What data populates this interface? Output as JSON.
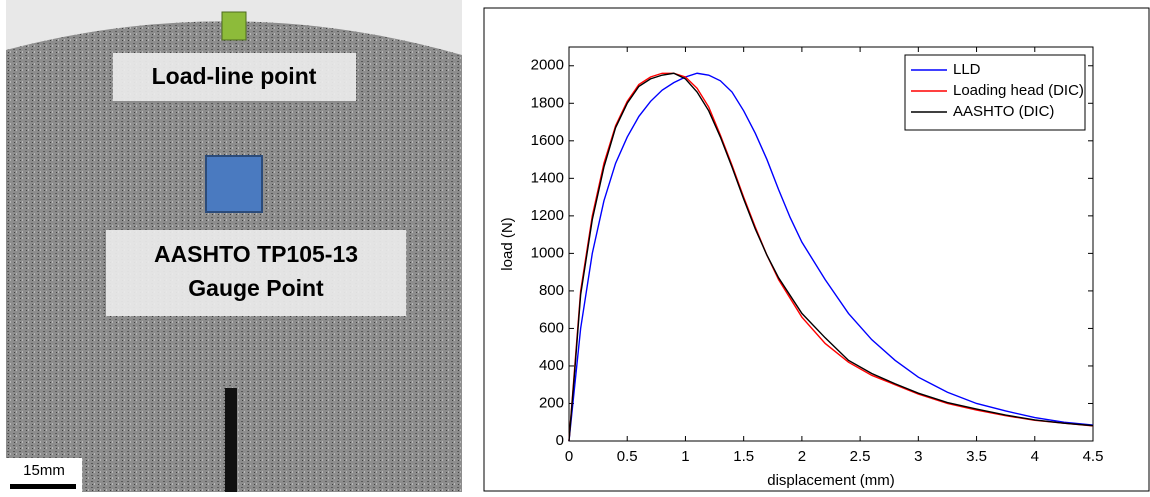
{
  "figure_labels": {
    "load_line": "Load-line point",
    "gauge_line1": "AASHTO TP105-13",
    "gauge_line2": "Gauge Point",
    "scale": "15mm"
  },
  "chart_data": {
    "type": "line",
    "xlabel": "displacement (mm)",
    "ylabel": "load (N)",
    "xlim": [
      0,
      4.5
    ],
    "ylim": [
      0,
      2100
    ],
    "xticks": [
      0,
      0.5,
      1,
      1.5,
      2,
      2.5,
      3,
      3.5,
      4,
      4.5
    ],
    "yticks": [
      0,
      200,
      400,
      600,
      800,
      1000,
      1200,
      1400,
      1600,
      1800,
      2000
    ],
    "legend": "upper right",
    "series": [
      {
        "name": "LLD",
        "color": "#0000ff",
        "x": [
          0,
          0.05,
          0.1,
          0.2,
          0.3,
          0.4,
          0.5,
          0.6,
          0.7,
          0.8,
          0.9,
          1.0,
          1.1,
          1.2,
          1.3,
          1.4,
          1.5,
          1.6,
          1.7,
          1.8,
          1.9,
          2.0,
          2.2,
          2.4,
          2.6,
          2.8,
          3.0,
          3.25,
          3.5,
          3.75,
          4.0,
          4.25,
          4.5
        ],
        "values": [
          0,
          300,
          600,
          1000,
          1280,
          1480,
          1620,
          1730,
          1810,
          1870,
          1910,
          1940,
          1960,
          1950,
          1920,
          1860,
          1760,
          1640,
          1500,
          1340,
          1190,
          1060,
          860,
          680,
          540,
          430,
          340,
          260,
          200,
          160,
          125,
          100,
          85
        ]
      },
      {
        "name": "Loading head (DIC)",
        "color": "#ff0000",
        "x": [
          0,
          0.05,
          0.1,
          0.2,
          0.3,
          0.4,
          0.5,
          0.6,
          0.7,
          0.8,
          0.9,
          1.0,
          1.1,
          1.2,
          1.3,
          1.4,
          1.5,
          1.6,
          1.7,
          1.8,
          2.0,
          2.2,
          2.4,
          2.6,
          2.8,
          3.0,
          3.25,
          3.5,
          3.75,
          4.0,
          4.25,
          4.5
        ],
        "values": [
          0,
          400,
          800,
          1200,
          1480,
          1680,
          1810,
          1900,
          1940,
          1960,
          1960,
          1940,
          1880,
          1780,
          1630,
          1470,
          1300,
          1140,
          990,
          860,
          660,
          520,
          420,
          350,
          300,
          250,
          200,
          165,
          135,
          110,
          95,
          80
        ]
      },
      {
        "name": "AASHTO (DIC)",
        "color": "#000000",
        "x": [
          0,
          0.05,
          0.1,
          0.2,
          0.3,
          0.4,
          0.5,
          0.6,
          0.7,
          0.8,
          0.9,
          1.0,
          1.1,
          1.2,
          1.3,
          1.4,
          1.5,
          1.6,
          1.7,
          1.8,
          2.0,
          2.2,
          2.4,
          2.6,
          2.8,
          3.0,
          3.25,
          3.5,
          3.75,
          4.0,
          4.25,
          4.5
        ],
        "values": [
          0,
          380,
          780,
          1180,
          1460,
          1670,
          1800,
          1890,
          1930,
          1950,
          1960,
          1930,
          1860,
          1760,
          1620,
          1460,
          1290,
          1130,
          990,
          870,
          680,
          550,
          430,
          360,
          305,
          255,
          205,
          170,
          138,
          112,
          95,
          82
        ]
      }
    ]
  }
}
